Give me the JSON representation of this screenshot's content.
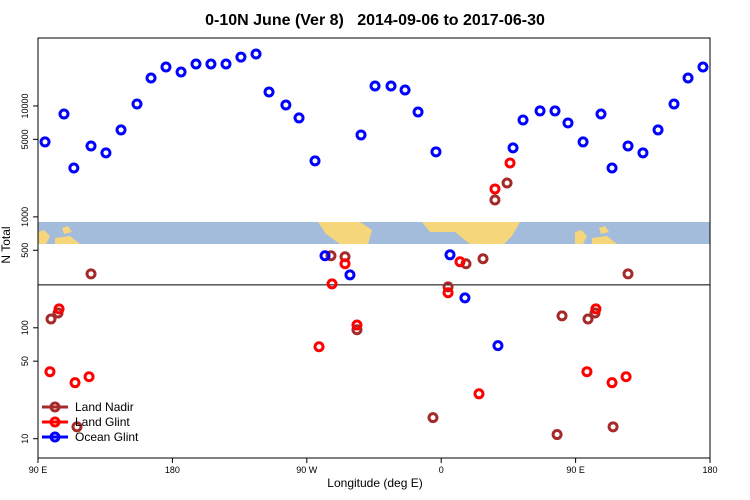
{
  "chart_data": {
    "type": "scatter",
    "title": "0-10N June (Ver 8)   2014-09-06 to 2017-06-30",
    "xlabel": "Longitude (deg E)",
    "ylabel": "N Total",
    "xlim": [
      90,
      540
    ],
    "ylim": [
      6.7,
      41000
    ],
    "ylog": true,
    "hline": 244,
    "xticks": [
      {
        "value": 90,
        "label": "90 E"
      },
      {
        "value": 180,
        "label": "180"
      },
      {
        "value": 270,
        "label": "90 W"
      },
      {
        "value": 360,
        "label": "0"
      },
      {
        "value": 450,
        "label": "90 E"
      },
      {
        "value": 540,
        "label": "180"
      }
    ],
    "yticks": [
      10,
      50,
      100,
      500,
      1000,
      5000,
      10000
    ],
    "legend": "bottom-left",
    "series": [
      {
        "name": "Land Nadir",
        "color": "#a52a2a",
        "x": [
          98.7,
          103.4,
          125.5,
          116.1,
          286.2,
          295.6,
          303.6,
          354.5,
          364.6,
          376.6,
          388,
          396,
          404.1,
          437.6,
          440.9,
          458.3,
          463,
          475.1,
          485.1
        ],
        "values": [
          120,
          136,
          306,
          12.8,
          446,
          437,
          96,
          15.5,
          234,
          378,
          419,
          1420,
          2020,
          10.9,
          128,
          120,
          136,
          12.8,
          306
        ]
      },
      {
        "name": "Land Glint",
        "color": "#ff0000",
        "x": [
          98,
          104.1,
          114.8,
          124.2,
          278.2,
          286.9,
          295.6,
          303.6,
          364.6,
          372.6,
          385.3,
          396,
          406.1,
          457.6,
          463.6,
          474.4,
          483.8
        ],
        "values": [
          40.2,
          148,
          32,
          36.2,
          67.5,
          249,
          378,
          106,
          207,
          394,
          25.4,
          1786,
          3060,
          40.2,
          148,
          32,
          36.2
        ]
      },
      {
        "name": "Ocean Glint",
        "color": "#0000ff",
        "x": [
          94.7,
          107.4,
          114,
          125.5,
          135.5,
          145.6,
          156.3,
          165.7,
          175.7,
          185.8,
          195.8,
          205.8,
          215.9,
          225.9,
          236,
          244.7,
          256,
          264.8,
          275.5,
          282.2,
          298.9,
          306.3,
          315.7,
          326.4,
          335.8,
          344.5,
          356.5,
          365.9,
          375.9,
          398,
          408.1,
          414.8,
          426.2,
          436.2,
          444.9,
          455,
          467,
          474.4,
          485.1,
          495.1,
          505.2,
          515.9,
          525.3,
          535.3
        ],
        "values": [
          4740,
          8470,
          2760,
          4360,
          3780,
          6080,
          10420,
          17860,
          22440,
          20230,
          23900,
          23900,
          23900,
          27600,
          29400,
          13370,
          10210,
          7800,
          3200,
          446,
          300,
          5480,
          15140,
          15140,
          13940,
          8830,
          3860,
          455,
          186,
          69,
          4190,
          7480,
          9020,
          9020,
          7030,
          4740,
          8470,
          2760,
          4360,
          3780,
          6080,
          10420,
          17860,
          22440
        ]
      }
    ]
  }
}
